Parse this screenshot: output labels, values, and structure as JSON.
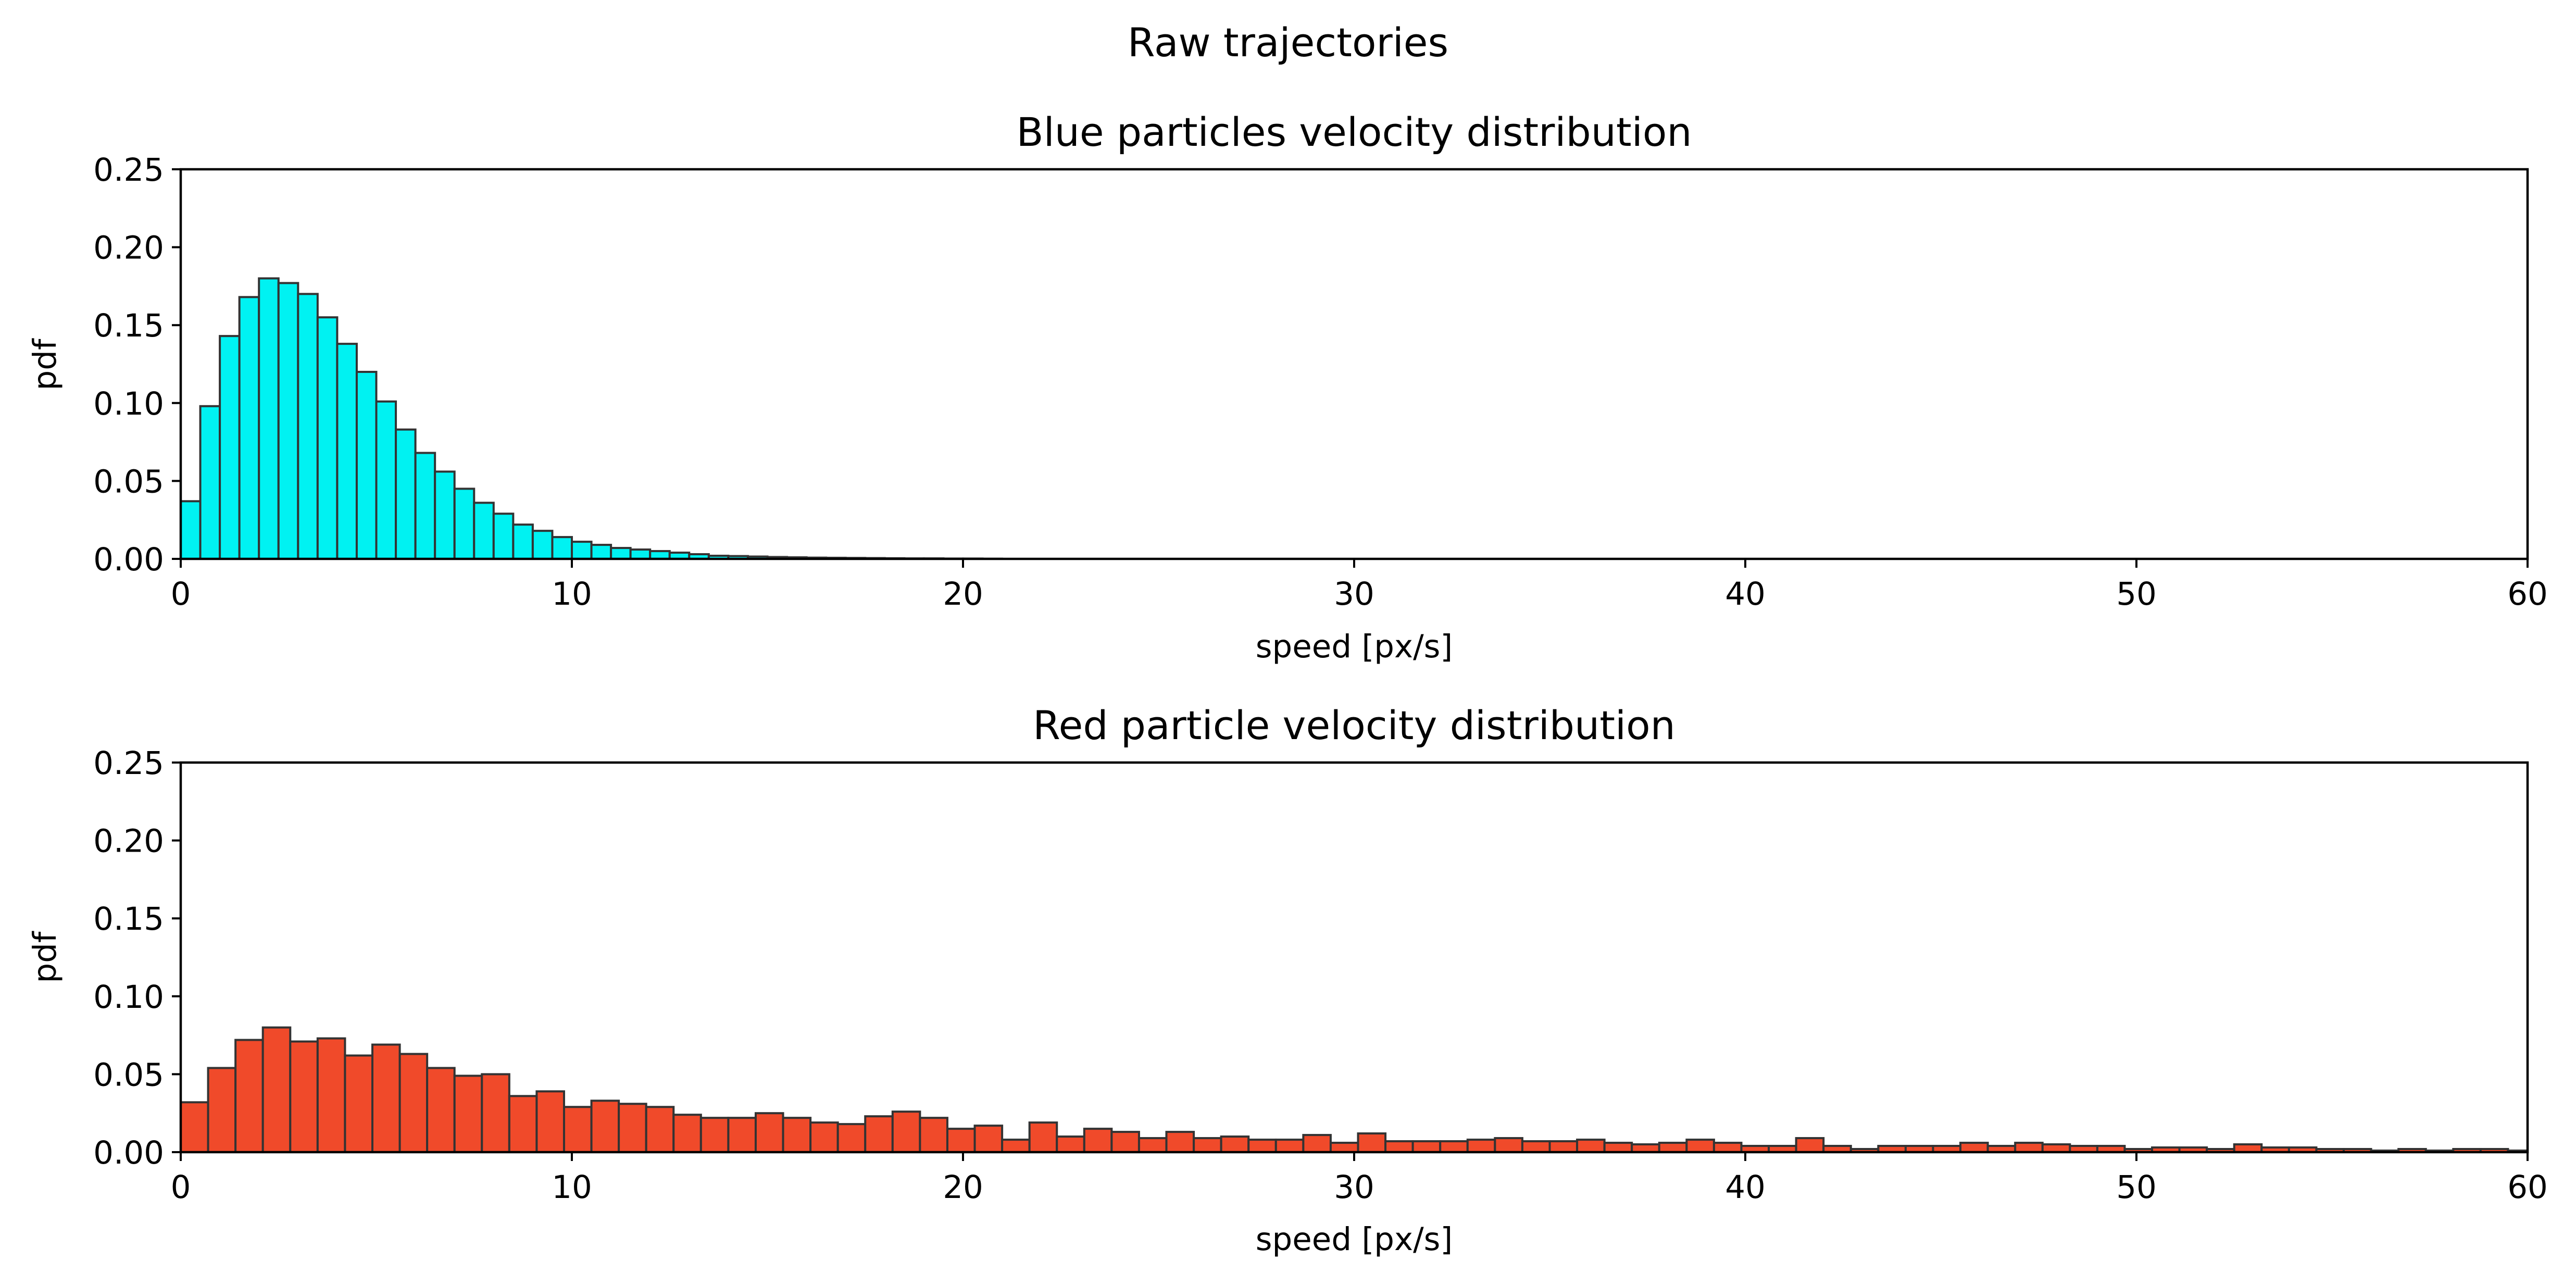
{
  "figure": {
    "suptitle": "Raw trajectories"
  },
  "chart_data": [
    {
      "type": "bar",
      "title": "Blue particles velocity distribution",
      "xlabel": "speed [px/s]",
      "ylabel": "pdf",
      "xlim": [
        0,
        60
      ],
      "ylim": [
        0,
        0.25
      ],
      "xticks": [
        "0",
        "10",
        "20",
        "30",
        "40",
        "50",
        "60"
      ],
      "yticks": [
        "0.00",
        "0.05",
        "0.10",
        "0.15",
        "0.20",
        "0.25"
      ],
      "bin_start": 0,
      "bin_width": 0.5,
      "fill_color": "#00f2f2",
      "edge_color": "#333333",
      "values": [
        0.037,
        0.098,
        0.143,
        0.168,
        0.18,
        0.177,
        0.17,
        0.155,
        0.138,
        0.12,
        0.101,
        0.083,
        0.068,
        0.056,
        0.045,
        0.036,
        0.029,
        0.022,
        0.018,
        0.014,
        0.011,
        0.009,
        0.007,
        0.006,
        0.005,
        0.004,
        0.003,
        0.002,
        0.0018,
        0.0015,
        0.0012,
        0.001,
        0.0008,
        0.0007,
        0.0006,
        0.0005,
        0.0004,
        0.0003,
        0.0003,
        0.0002,
        0.0002,
        0.0001
      ]
    },
    {
      "type": "bar",
      "title": "Red particle velocity distribution",
      "xlabel": "speed [px/s]",
      "ylabel": "pdf",
      "xlim": [
        0,
        60
      ],
      "ylim": [
        0,
        0.25
      ],
      "xticks": [
        "0",
        "10",
        "20",
        "30",
        "40",
        "50",
        "60"
      ],
      "yticks": [
        "0.00",
        "0.05",
        "0.10",
        "0.15",
        "0.20",
        "0.25"
      ],
      "bin_start": 0,
      "bin_width": 0.7,
      "fill_color": "#f04a2a",
      "edge_color": "#333333",
      "values": [
        0.032,
        0.054,
        0.072,
        0.08,
        0.071,
        0.073,
        0.062,
        0.069,
        0.063,
        0.054,
        0.049,
        0.05,
        0.036,
        0.039,
        0.029,
        0.033,
        0.031,
        0.029,
        0.024,
        0.022,
        0.022,
        0.025,
        0.022,
        0.019,
        0.018,
        0.023,
        0.026,
        0.022,
        0.015,
        0.017,
        0.008,
        0.019,
        0.01,
        0.015,
        0.013,
        0.009,
        0.013,
        0.009,
        0.01,
        0.008,
        0.008,
        0.011,
        0.006,
        0.012,
        0.007,
        0.007,
        0.007,
        0.008,
        0.009,
        0.007,
        0.007,
        0.008,
        0.006,
        0.005,
        0.006,
        0.008,
        0.006,
        0.004,
        0.004,
        0.009,
        0.004,
        0.002,
        0.004,
        0.004,
        0.004,
        0.006,
        0.004,
        0.006,
        0.005,
        0.004,
        0.004,
        0.002,
        0.003,
        0.003,
        0.002,
        0.005,
        0.003,
        0.003,
        0.002,
        0.002,
        0.001,
        0.002,
        0.001,
        0.002,
        0.002,
        0.001,
        0.002,
        0.001,
        0.002,
        0.002
      ]
    }
  ]
}
